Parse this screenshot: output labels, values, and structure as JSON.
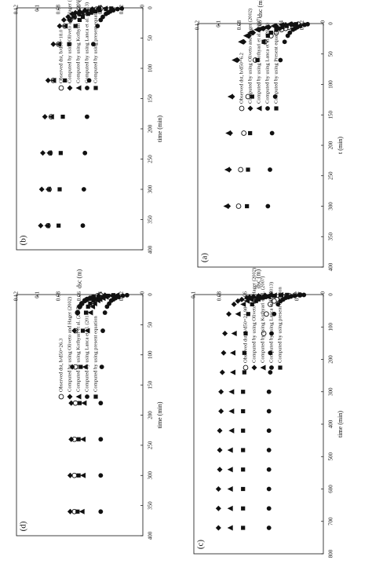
{
  "figure": {
    "panels": [
      "a",
      "b",
      "c",
      "d"
    ]
  },
  "chart_data": [
    {
      "id": "a",
      "type": "scatter",
      "panel_label": "(a)",
      "xlabel": "t (min)",
      "ylabel": "dsc (m)",
      "xlim": [
        0,
        400
      ],
      "ylim": [
        0,
        0.12
      ],
      "xticks": [
        "0",
        "50",
        "100",
        "150",
        "200",
        "250",
        "300",
        "350",
        "400"
      ],
      "yticks": [
        "0",
        "0.02",
        "0.04",
        "0.06",
        "0.08",
        "0.1",
        "0.12"
      ],
      "legend_position": "upper-middle",
      "series": [
        {
          "name": "Observed dst, b/d50=6.2",
          "marker": "open-circle",
          "x": [
            1,
            2,
            4,
            6,
            8,
            10,
            15,
            20,
            30,
            60,
            120,
            180,
            240,
            300
          ],
          "y": [
            0.024,
            0.027,
            0.03,
            0.033,
            0.036,
            0.04,
            0.045,
            0.05,
            0.056,
            0.065,
            0.072,
            0.076,
            0.079,
            0.081
          ]
        },
        {
          "name": "Computed by using Oliveto and Hager (2002)",
          "marker": "diamond",
          "x": [
            1,
            2,
            4,
            6,
            8,
            10,
            15,
            20,
            30,
            60,
            120,
            180,
            240,
            300
          ],
          "y": [
            0.03,
            0.036,
            0.045,
            0.052,
            0.057,
            0.061,
            0.067,
            0.071,
            0.076,
            0.082,
            0.087,
            0.089,
            0.09,
            0.091
          ]
        },
        {
          "name": "Computed by using Kothyari et al. (2007)",
          "marker": "triangle",
          "x": [
            1,
            2,
            4,
            6,
            8,
            10,
            15,
            20,
            30,
            60,
            120,
            180,
            240,
            300
          ],
          "y": [
            0.033,
            0.04,
            0.048,
            0.055,
            0.06,
            0.064,
            0.07,
            0.074,
            0.079,
            0.085,
            0.089,
            0.091,
            0.092,
            0.093
          ]
        },
        {
          "name": "Computed by using Lanca et al. (2013)",
          "marker": "filled-circle",
          "x": [
            1,
            2,
            4,
            6,
            8,
            10,
            15,
            20,
            30,
            60,
            120,
            180,
            240,
            300
          ],
          "y": [
            0.015,
            0.018,
            0.022,
            0.025,
            0.027,
            0.029,
            0.032,
            0.034,
            0.037,
            0.041,
            0.046,
            0.049,
            0.051,
            0.053
          ]
        },
        {
          "name": "Computed by using Present equation",
          "marker": "square",
          "x": [
            1,
            2,
            4,
            6,
            8,
            10,
            15,
            20,
            30,
            60,
            120,
            180,
            240,
            300
          ],
          "y": [
            0.026,
            0.03,
            0.035,
            0.039,
            0.042,
            0.045,
            0.05,
            0.053,
            0.057,
            0.063,
            0.068,
            0.07,
            0.072,
            0.073
          ]
        }
      ]
    },
    {
      "id": "b",
      "type": "scatter",
      "panel_label": "(b)",
      "xlabel": "time (min)",
      "ylabel": "dsc (m)",
      "xlim": [
        0,
        400
      ],
      "ylim": [
        0,
        0.12
      ],
      "xticks": [
        "0",
        "50",
        "100",
        "150",
        "200",
        "250",
        "300",
        "350",
        "400"
      ],
      "yticks": [
        "0",
        "0.02",
        "0.04",
        "0.06",
        "0.08",
        "0.1",
        "0.12"
      ],
      "legend_position": "upper-middle",
      "series": [
        {
          "name": "Observed dst, b/d50=18.0",
          "marker": "open-circle",
          "x": [
            1,
            2,
            4,
            6,
            8,
            10,
            15,
            20,
            30,
            60,
            120,
            180,
            240,
            300,
            360
          ],
          "y": [
            0.04,
            0.044,
            0.048,
            0.052,
            0.056,
            0.06,
            0.065,
            0.069,
            0.074,
            0.08,
            0.085,
            0.087,
            0.088,
            0.089,
            0.09
          ]
        },
        {
          "name": "Computed by using Oliveto and Hager (2002)",
          "marker": "diamond",
          "x": [
            1,
            2,
            4,
            6,
            8,
            10,
            15,
            20,
            30,
            60,
            120,
            180,
            240,
            300,
            360
          ],
          "y": [
            0.042,
            0.048,
            0.055,
            0.06,
            0.064,
            0.067,
            0.071,
            0.075,
            0.079,
            0.085,
            0.09,
            0.093,
            0.095,
            0.096,
            0.097
          ]
        },
        {
          "name": "Computed by using Kothyari et al. (2007)",
          "marker": "triangle",
          "x": [
            1,
            2,
            4,
            6,
            8,
            10,
            15,
            20,
            30,
            60,
            120,
            180,
            240,
            300,
            360
          ],
          "y": [
            0.036,
            0.042,
            0.049,
            0.054,
            0.058,
            0.061,
            0.066,
            0.07,
            0.074,
            0.08,
            0.085,
            0.087,
            0.089,
            0.09,
            0.091
          ]
        },
        {
          "name": "Computed by using Lanca et al. (2013)",
          "marker": "filled-circle",
          "x": [
            1,
            2,
            4,
            6,
            8,
            10,
            15,
            20,
            30,
            60,
            120,
            180,
            240,
            300,
            360
          ],
          "y": [
            0.02,
            0.024,
            0.028,
            0.031,
            0.033,
            0.035,
            0.038,
            0.04,
            0.043,
            0.047,
            0.051,
            0.053,
            0.055,
            0.056,
            0.057
          ]
        },
        {
          "name": "Computed by using present equation",
          "marker": "square",
          "x": [
            1,
            2,
            4,
            6,
            8,
            10,
            15,
            20,
            30,
            60,
            120,
            180,
            240,
            300,
            360
          ],
          "y": [
            0.03,
            0.035,
            0.041,
            0.045,
            0.049,
            0.052,
            0.057,
            0.06,
            0.064,
            0.07,
            0.074,
            0.076,
            0.078,
            0.079,
            0.08
          ]
        }
      ]
    },
    {
      "id": "c",
      "type": "scatter",
      "panel_label": "(c)",
      "xlabel": "time (min)",
      "ylabel": "dsc (m)",
      "xlim": [
        0,
        800
      ],
      "ylim": [
        0,
        0.1
      ],
      "xticks": [
        "0",
        "100",
        "200",
        "300",
        "400",
        "500",
        "600",
        "700",
        "800"
      ],
      "yticks": [
        "0",
        "0.02",
        "0.04",
        "0.06",
        "0.08",
        "0.1"
      ],
      "legend_position": "lower-middle",
      "series": [
        {
          "name": "Observed dst, b/d50=21.98",
          "marker": "open-circle",
          "x": [
            1,
            2,
            4,
            6,
            8,
            10,
            15,
            20,
            30,
            60,
            120
          ],
          "y": [
            0.018,
            0.022,
            0.026,
            0.029,
            0.031,
            0.033,
            0.036,
            0.038,
            0.041,
            0.044,
            0.046
          ]
        },
        {
          "name": "Computed by using Oliveto and Hager (2002)",
          "marker": "diamond",
          "x": [
            1,
            2,
            4,
            6,
            8,
            10,
            15,
            20,
            30,
            60,
            120,
            180,
            240,
            300,
            360,
            420,
            480,
            540,
            600,
            660,
            720
          ],
          "y": [
            0.04,
            0.045,
            0.05,
            0.054,
            0.057,
            0.059,
            0.063,
            0.066,
            0.069,
            0.073,
            0.076,
            0.077,
            0.078,
            0.079,
            0.079,
            0.08,
            0.08,
            0.08,
            0.081,
            0.081,
            0.081
          ]
        },
        {
          "name": "Computed by using Kothyari et al. (2007)",
          "marker": "triangle",
          "x": [
            1,
            2,
            4,
            6,
            8,
            10,
            15,
            20,
            30,
            60,
            120,
            180,
            240,
            300,
            360,
            420,
            480,
            540,
            600,
            660,
            720
          ],
          "y": [
            0.033,
            0.038,
            0.043,
            0.047,
            0.05,
            0.052,
            0.056,
            0.059,
            0.062,
            0.066,
            0.069,
            0.07,
            0.07,
            0.071,
            0.071,
            0.071,
            0.072,
            0.072,
            0.072,
            0.072,
            0.072
          ]
        },
        {
          "name": "Computed by using Lanca et al. (2013)",
          "marker": "filled-circle",
          "x": [
            1,
            2,
            4,
            6,
            8,
            10,
            15,
            20,
            30,
            60,
            120,
            180,
            240,
            300,
            360,
            420,
            480,
            540,
            600,
            660,
            720
          ],
          "y": [
            0.015,
            0.018,
            0.022,
            0.025,
            0.027,
            0.029,
            0.031,
            0.033,
            0.035,
            0.038,
            0.04,
            0.041,
            0.041,
            0.042,
            0.042,
            0.042,
            0.042,
            0.042,
            0.042,
            0.042,
            0.042
          ]
        },
        {
          "name": "Computed by using present equation",
          "marker": "square",
          "x": [
            1,
            2,
            4,
            6,
            8,
            10,
            15,
            20,
            30,
            60,
            120,
            180,
            240,
            300,
            360,
            420,
            480,
            540,
            600,
            660,
            720
          ],
          "y": [
            0.028,
            0.033,
            0.038,
            0.042,
            0.045,
            0.047,
            0.05,
            0.052,
            0.055,
            0.058,
            0.06,
            0.061,
            0.061,
            0.062,
            0.062,
            0.062,
            0.062,
            0.062,
            0.062,
            0.062,
            0.062
          ]
        }
      ]
    },
    {
      "id": "d",
      "type": "scatter",
      "panel_label": "(d)",
      "xlabel": "time (min)",
      "ylabel": "dsc (m)",
      "xlim": [
        0,
        400
      ],
      "ylim": [
        0,
        0.12
      ],
      "xticks": [
        "0",
        "50",
        "100",
        "150",
        "200",
        "250",
        "300",
        "350",
        "400"
      ],
      "yticks": [
        "0",
        "0.02",
        "0.04",
        "0.06",
        "0.08",
        "0.1",
        "0.12"
      ],
      "legend_position": "middle",
      "series": [
        {
          "name": "Observed dst, b/d50=26.3",
          "marker": "open-circle",
          "x": [
            1,
            2,
            4,
            6,
            8,
            10,
            15,
            20,
            30,
            60,
            120,
            180,
            240,
            300,
            360
          ],
          "y": [
            0.04,
            0.043,
            0.047,
            0.05,
            0.053,
            0.055,
            0.058,
            0.06,
            0.062,
            0.064,
            0.064,
            0.064,
            0.065,
            0.065,
            0.065
          ]
        },
        {
          "name": "Computed by using Oliveto and Hager (2002)",
          "marker": "diamond",
          "x": [
            1,
            2,
            4,
            6,
            8,
            10,
            15,
            20,
            30,
            60,
            120,
            180,
            240,
            300,
            360
          ],
          "y": [
            0.036,
            0.042,
            0.047,
            0.05,
            0.053,
            0.055,
            0.058,
            0.06,
            0.062,
            0.065,
            0.067,
            0.068,
            0.068,
            0.069,
            0.069
          ]
        },
        {
          "name": "Computed by using Kothyari et al. (2007)",
          "marker": "triangle",
          "x": [
            1,
            2,
            4,
            6,
            8,
            10,
            15,
            20,
            30,
            60,
            120,
            180,
            240,
            300,
            360
          ],
          "y": [
            0.025,
            0.03,
            0.035,
            0.038,
            0.041,
            0.043,
            0.046,
            0.048,
            0.05,
            0.053,
            0.055,
            0.056,
            0.057,
            0.057,
            0.058
          ]
        },
        {
          "name": "Computed by using Lanca et al. (2013)",
          "marker": "filled-circle",
          "x": [
            1,
            2,
            4,
            6,
            8,
            10,
            15,
            20,
            30,
            60,
            120,
            180,
            240,
            300,
            360
          ],
          "y": [
            0.015,
            0.019,
            0.023,
            0.026,
            0.028,
            0.03,
            0.032,
            0.034,
            0.036,
            0.038,
            0.039,
            0.04,
            0.04,
            0.04,
            0.04
          ]
        },
        {
          "name": "Computed by using present equation",
          "marker": "square",
          "x": [
            1,
            2,
            4,
            6,
            8,
            10,
            15,
            20,
            30,
            60,
            120,
            180,
            240,
            300,
            360
          ],
          "y": [
            0.028,
            0.033,
            0.038,
            0.042,
            0.045,
            0.047,
            0.05,
            0.052,
            0.054,
            0.057,
            0.059,
            0.06,
            0.061,
            0.061,
            0.062
          ]
        }
      ]
    }
  ]
}
